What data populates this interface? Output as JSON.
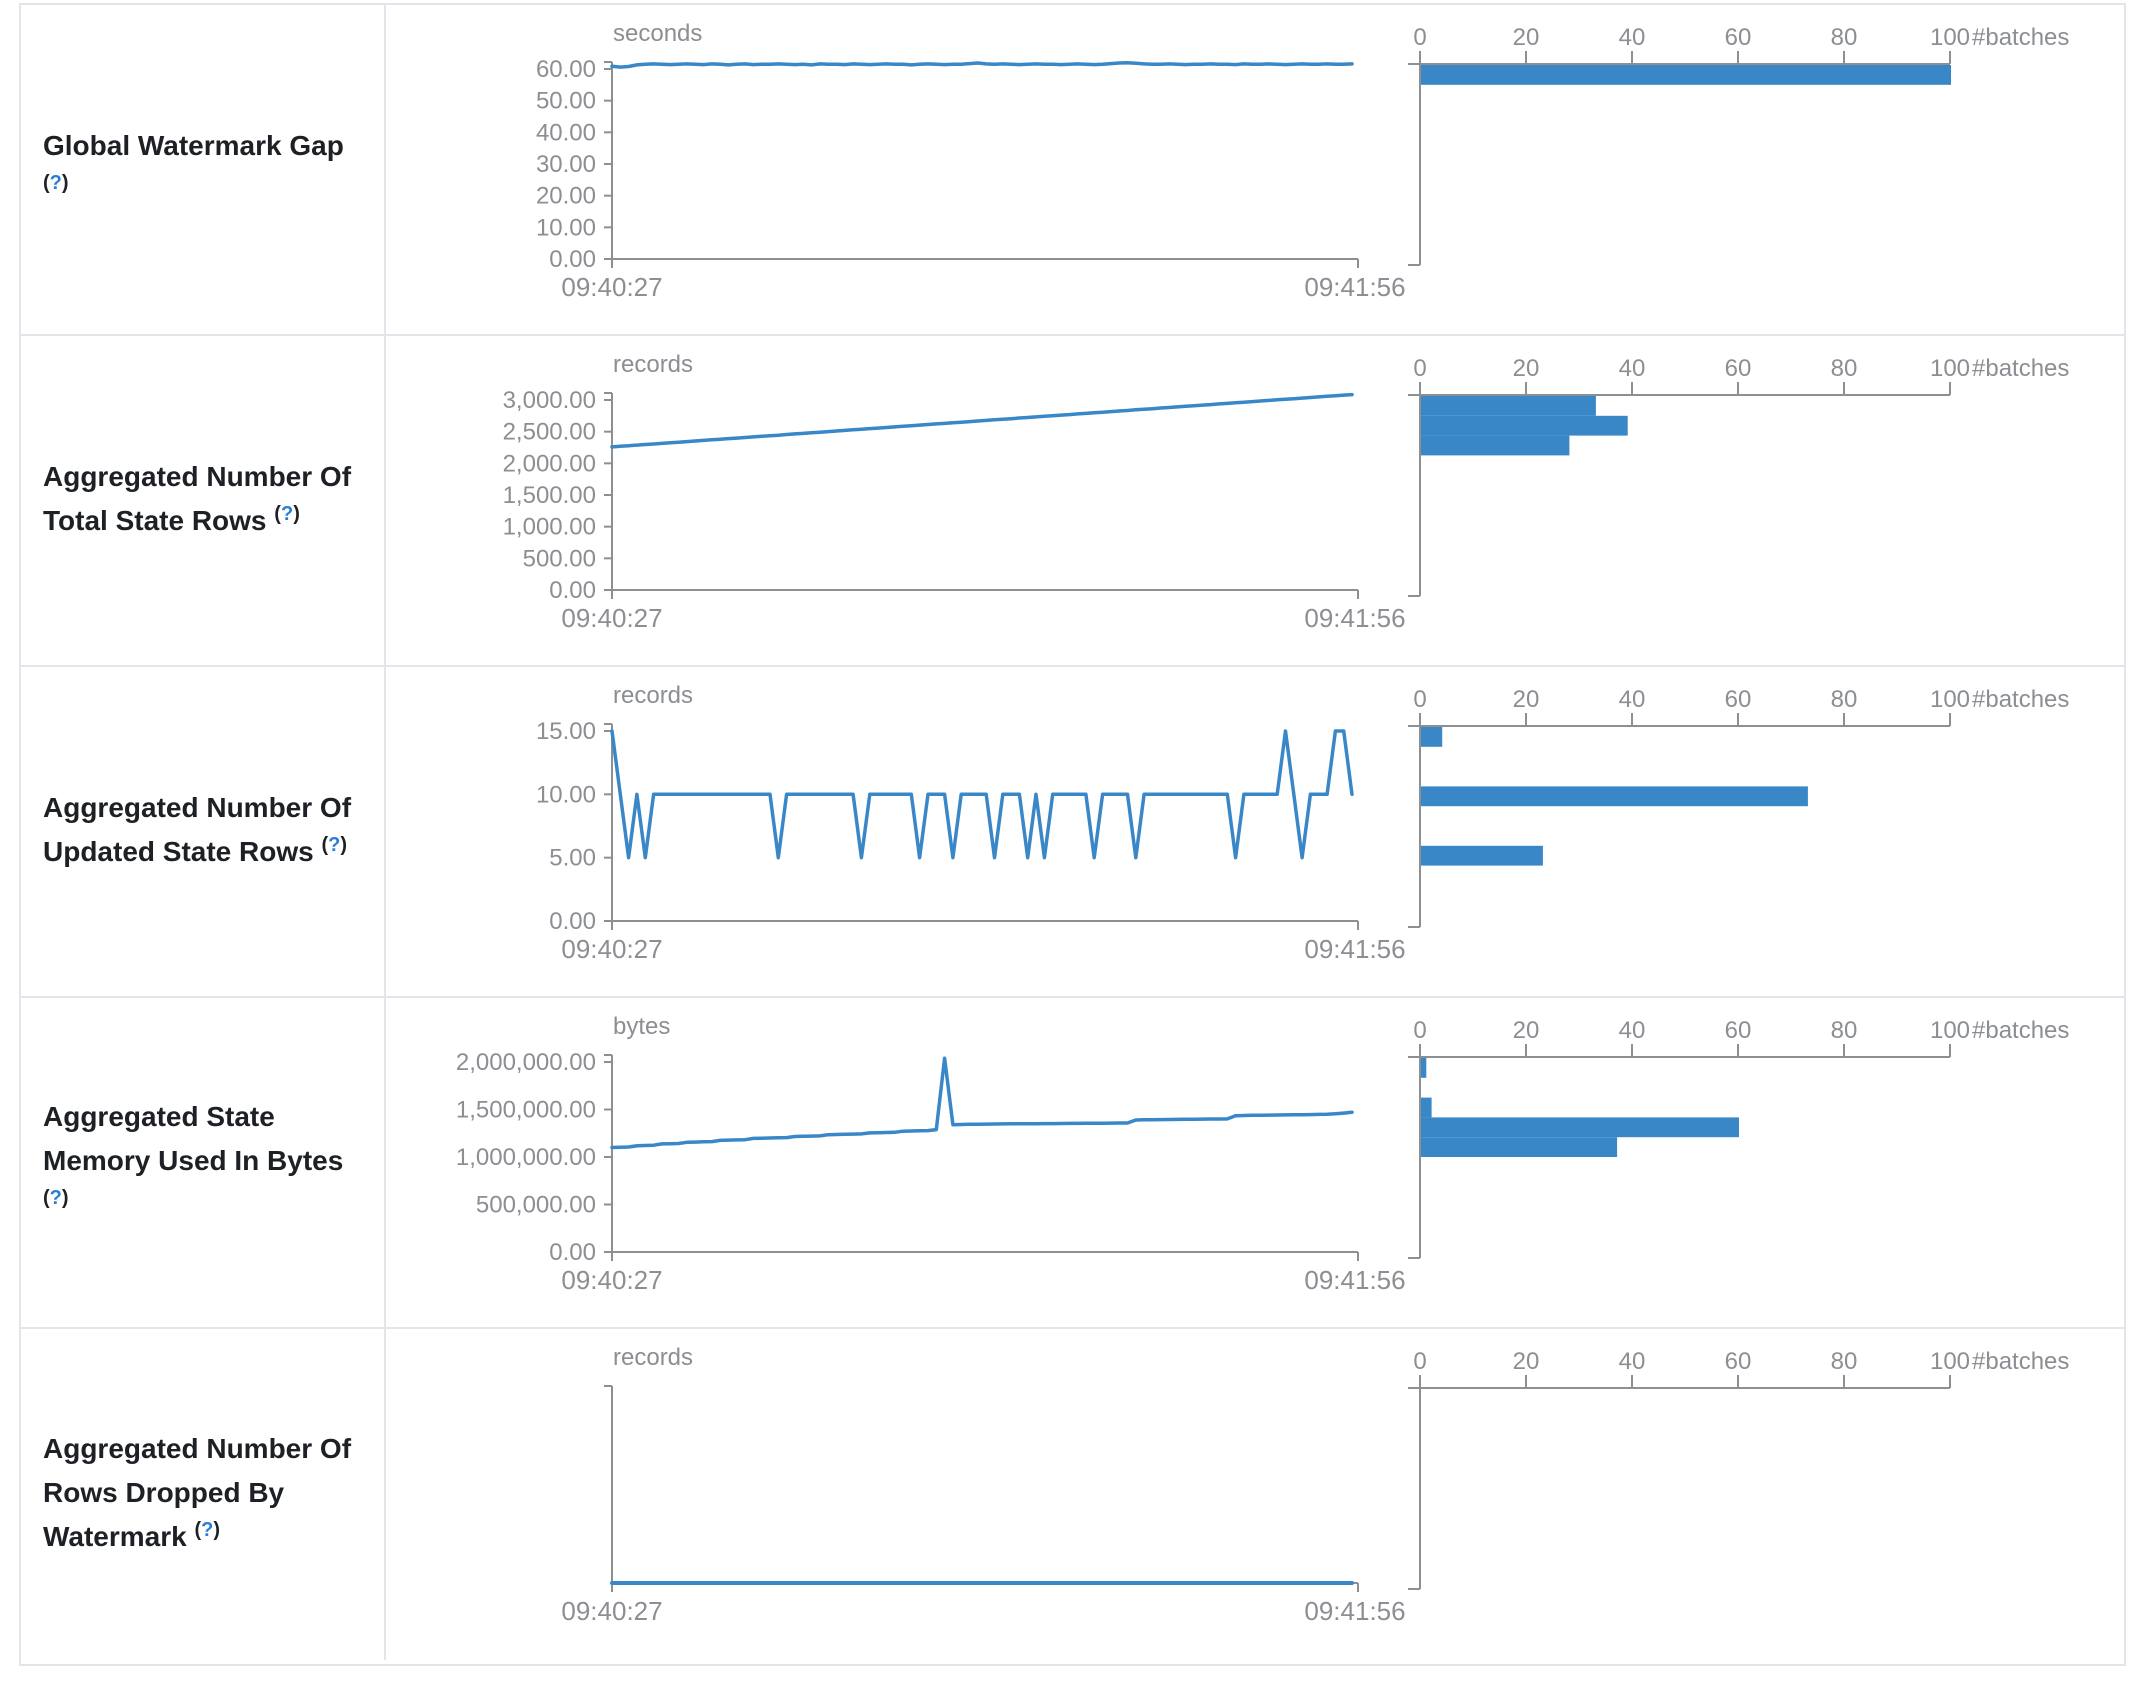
{
  "colors": {
    "accent": "#3a87c8",
    "axis": "#8d9093",
    "tick_text": "#8b8e93",
    "label_text": "#1d2025",
    "help_blue": "#2b7dd2",
    "border": "#e2e5e9"
  },
  "help": {
    "open": "(",
    "q": "?",
    "close": ")"
  },
  "table": {
    "rows": [
      {
        "label": "Global Watermark Gap",
        "timeline": {
          "unit": "seconds",
          "y_ticks": [
            "60.00",
            "50.00",
            "40.00",
            "30.00",
            "20.00",
            "10.00",
            "0.00"
          ],
          "y_max": 60,
          "x_start_label": "09:40:27",
          "x_end_label": "09:41:56",
          "values": [
            60.9,
            60.6,
            60.8,
            61.3,
            61.5,
            61.6,
            61.5,
            61.4,
            61.5,
            61.6,
            61.5,
            61.4,
            61.6,
            61.5,
            61.3,
            61.5,
            61.6,
            61.4,
            61.5,
            61.5,
            61.6,
            61.5,
            61.4,
            61.5,
            61.3,
            61.6,
            61.5,
            61.5,
            61.4,
            61.6,
            61.5,
            61.4,
            61.5,
            61.6,
            61.5,
            61.5,
            61.3,
            61.5,
            61.6,
            61.5,
            61.4,
            61.5,
            61.5,
            61.7,
            61.9,
            61.6,
            61.5,
            61.6,
            61.5,
            61.4,
            61.5,
            61.6,
            61.5,
            61.5,
            61.4,
            61.5,
            61.6,
            61.5,
            61.4,
            61.5,
            61.7,
            61.9,
            62.0,
            61.8,
            61.6,
            61.5,
            61.5,
            61.6,
            61.5,
            61.4,
            61.5,
            61.5,
            61.6,
            61.5,
            61.5,
            61.4,
            61.6,
            61.5,
            61.5,
            61.6,
            61.5,
            61.4,
            61.5,
            61.6,
            61.5,
            61.5,
            61.6,
            61.5,
            61.5,
            61.6
          ]
        },
        "histogram": {
          "x_ticks": [
            "0",
            "20",
            "40",
            "60",
            "80",
            "100"
          ],
          "axis_label": "#batches",
          "bars": [
            {
              "slot": 0,
              "count": 100
            }
          ]
        }
      },
      {
        "label": "Aggregated Number Of Total State Rows",
        "timeline": {
          "unit": "records",
          "y_ticks": [
            "3,000.00",
            "2,500.00",
            "2,000.00",
            "1,500.00",
            "1,000.00",
            "500.00",
            "0.00"
          ],
          "y_max": 3000,
          "x_start_label": "09:40:27",
          "x_end_label": "09:41:56",
          "values": [
            2260,
            2269,
            2278,
            2288,
            2297,
            2306,
            2315,
            2325,
            2334,
            2343,
            2353,
            2362,
            2371,
            2380,
            2390,
            2399,
            2408,
            2418,
            2427,
            2436,
            2445,
            2455,
            2464,
            2473,
            2483,
            2492,
            2501,
            2510,
            2520,
            2529,
            2538,
            2548,
            2557,
            2566,
            2575,
            2585,
            2594,
            2603,
            2613,
            2622,
            2631,
            2640,
            2650,
            2659,
            2668,
            2678,
            2687,
            2696,
            2705,
            2715,
            2724,
            2733,
            2743,
            2752,
            2761,
            2770,
            2780,
            2789,
            2798,
            2808,
            2817,
            2826,
            2835,
            2845,
            2854,
            2863,
            2873,
            2882,
            2891,
            2900,
            2910,
            2919,
            2928,
            2938,
            2947,
            2956,
            2965,
            2975,
            2984,
            2993,
            3003,
            3012,
            3021,
            3030,
            3040,
            3049,
            3058,
            3068,
            3077,
            3085
          ]
        },
        "histogram": {
          "x_ticks": [
            "0",
            "20",
            "40",
            "60",
            "80",
            "100"
          ],
          "axis_label": "#batches",
          "bars": [
            {
              "slot": 0,
              "count": 33
            },
            {
              "slot": 1,
              "count": 39
            },
            {
              "slot": 2,
              "count": 28
            }
          ]
        }
      },
      {
        "label": "Aggregated Number Of Updated State Rows",
        "timeline": {
          "unit": "records",
          "y_ticks": [
            "15.00",
            "10.00",
            "5.00",
            "0.00"
          ],
          "y_max": 15,
          "x_start_label": "09:40:27",
          "x_end_label": "09:41:56",
          "values": [
            15,
            10,
            5,
            10,
            5,
            10,
            10,
            10,
            10,
            10,
            10,
            10,
            10,
            10,
            10,
            10,
            10,
            10,
            10,
            10,
            5,
            10,
            10,
            10,
            10,
            10,
            10,
            10,
            10,
            10,
            5,
            10,
            10,
            10,
            10,
            10,
            10,
            5,
            10,
            10,
            10,
            5,
            10,
            10,
            10,
            10,
            5,
            10,
            10,
            10,
            5,
            10,
            5,
            10,
            10,
            10,
            10,
            10,
            5,
            10,
            10,
            10,
            10,
            5,
            10,
            10,
            10,
            10,
            10,
            10,
            10,
            10,
            10,
            10,
            10,
            5,
            10,
            10,
            10,
            10,
            10,
            15,
            10,
            5,
            10,
            10,
            10,
            15,
            15,
            10
          ]
        },
        "histogram": {
          "x_ticks": [
            "0",
            "20",
            "40",
            "60",
            "80",
            "100"
          ],
          "axis_label": "#batches",
          "bars": [
            {
              "slot": 0,
              "count": 4
            },
            {
              "slot": 3,
              "count": 73
            },
            {
              "slot": 6,
              "count": 23
            }
          ]
        }
      },
      {
        "label": "Aggregated State Memory Used In Bytes",
        "timeline": {
          "unit": "bytes",
          "y_ticks": [
            "2,000,000.00",
            "1,500,000.00",
            "1,000,000.00",
            "500,000.00",
            "0.00"
          ],
          "y_max": 2000000,
          "x_start_label": "09:40:27",
          "x_end_label": "09:41:56",
          "values": [
            1100000,
            1102000,
            1105000,
            1118000,
            1121000,
            1124000,
            1138000,
            1140000,
            1142000,
            1155000,
            1157000,
            1160000,
            1162000,
            1175000,
            1178000,
            1180000,
            1182000,
            1196000,
            1198000,
            1200000,
            1202000,
            1204000,
            1216000,
            1218000,
            1220000,
            1222000,
            1235000,
            1237000,
            1239000,
            1241000,
            1243000,
            1254000,
            1256000,
            1258000,
            1260000,
            1272000,
            1274000,
            1276000,
            1278000,
            1288000,
            2040000,
            1340000,
            1342000,
            1344000,
            1345000,
            1346000,
            1347000,
            1348000,
            1349000,
            1350000,
            1350000,
            1351000,
            1352000,
            1352000,
            1353000,
            1354000,
            1354000,
            1355000,
            1356000,
            1356000,
            1357000,
            1358000,
            1358000,
            1390000,
            1392000,
            1393000,
            1394000,
            1395000,
            1396000,
            1397000,
            1398000,
            1399000,
            1400000,
            1400000,
            1401000,
            1435000,
            1437000,
            1439000,
            1440000,
            1441000,
            1442000,
            1443000,
            1444000,
            1445000,
            1446000,
            1448000,
            1450000,
            1455000,
            1462000,
            1470000
          ]
        },
        "histogram": {
          "x_ticks": [
            "0",
            "20",
            "40",
            "60",
            "80",
            "100"
          ],
          "axis_label": "#batches",
          "bars": [
            {
              "slot": 0,
              "count": 1
            },
            {
              "slot": 2,
              "count": 2
            },
            {
              "slot": 3,
              "count": 60
            },
            {
              "slot": 4,
              "count": 37
            }
          ]
        }
      },
      {
        "label": "Aggregated Number Of Rows Dropped By Watermark",
        "timeline": {
          "unit": "records",
          "y_ticks": [],
          "y_max": 1,
          "x_start_label": "09:40:27",
          "x_end_label": "09:41:56",
          "values": [
            0,
            0,
            0,
            0,
            0,
            0,
            0,
            0,
            0,
            0,
            0,
            0,
            0,
            0,
            0,
            0,
            0,
            0,
            0,
            0,
            0,
            0,
            0,
            0,
            0,
            0,
            0,
            0,
            0,
            0,
            0,
            0,
            0,
            0,
            0,
            0,
            0,
            0,
            0,
            0,
            0,
            0,
            0,
            0,
            0,
            0,
            0,
            0,
            0,
            0,
            0,
            0,
            0,
            0,
            0,
            0,
            0,
            0,
            0,
            0,
            0,
            0,
            0,
            0,
            0,
            0,
            0,
            0,
            0,
            0,
            0,
            0,
            0,
            0,
            0,
            0,
            0,
            0,
            0,
            0,
            0,
            0,
            0,
            0,
            0,
            0,
            0,
            0,
            0,
            0
          ]
        },
        "histogram": {
          "x_ticks": [
            "0",
            "20",
            "40",
            "60",
            "80",
            "100"
          ],
          "axis_label": "#batches",
          "bars": []
        }
      }
    ]
  }
}
